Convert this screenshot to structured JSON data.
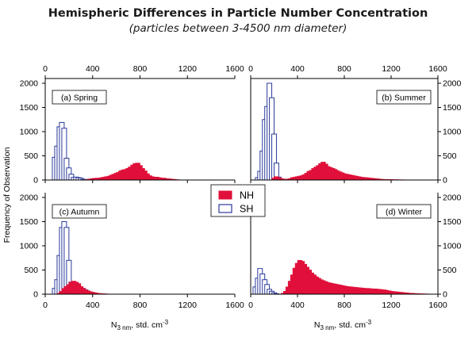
{
  "title": "Hemispheric Differences in Particle Number Concentration",
  "subtitle": "(particles between 3-4500 nm diameter)",
  "colors": {
    "NH": "#e0103a",
    "SH_stroke": "#2b3b9b",
    "axis": "#000000"
  },
  "chart_data": {
    "type": "bar",
    "xlim": [
      0,
      1600
    ],
    "ylim": [
      0,
      2000
    ],
    "bin_width": 40,
    "x_ticks": [
      0,
      400,
      800,
      1200,
      1600
    ],
    "y_ticks": [
      0,
      500,
      1000,
      1500,
      2000
    ],
    "xlabel": {
      "prefix": "N",
      "sub": "3 nm",
      "mid": ", std. cm",
      "sup": "-3"
    },
    "ylabel": "Frequency of Observation",
    "legend": {
      "position": "center",
      "entries": [
        {
          "name": "NH",
          "style": "filled"
        },
        {
          "name": "SH",
          "style": "outline"
        }
      ]
    },
    "panels": [
      {
        "label": "(a) Spring",
        "series": [
          {
            "name": "SH",
            "x": [
              60,
              80,
              100,
              120,
              140,
              160,
              180,
              200,
              220,
              240,
              260,
              280,
              300,
              320,
              340,
              360,
              380,
              400,
              420
            ],
            "values": [
              470,
              700,
              1100,
              1190,
              1070,
              450,
              250,
              120,
              55,
              60,
              50,
              40,
              15,
              10,
              10,
              5,
              5,
              5,
              5
            ]
          },
          {
            "name": "NH",
            "x": [
              320,
              340,
              360,
              380,
              400,
              420,
              440,
              460,
              480,
              500,
              520,
              540,
              560,
              580,
              600,
              620,
              640,
              660,
              680,
              700,
              720,
              740,
              760,
              780,
              800,
              820,
              840,
              860,
              880,
              900,
              920,
              940,
              960,
              980,
              1000,
              1020,
              1040,
              1060,
              1080,
              1100
            ],
            "values": [
              5,
              10,
              20,
              30,
              35,
              40,
              40,
              50,
              60,
              70,
              80,
              100,
              120,
              140,
              160,
              190,
              210,
              220,
              240,
              270,
              310,
              340,
              350,
              300,
              240,
              190,
              130,
              90,
              70,
              60,
              60,
              50,
              40,
              40,
              30,
              25,
              20,
              15,
              10,
              5
            ]
          }
        ]
      },
      {
        "label": "(b) Summer",
        "series": [
          {
            "name": "SH",
            "x": [
              40,
              60,
              80,
              100,
              120,
              140,
              160,
              180,
              200,
              220,
              240
            ],
            "values": [
              50,
              180,
              600,
              1250,
              1520,
              2000,
              1700,
              950,
              350,
              60,
              10
            ]
          },
          {
            "name": "NH",
            "x": [
              180,
              200,
              220,
              240,
              260,
              280,
              300,
              320,
              340,
              360,
              380,
              400,
              420,
              440,
              460,
              480,
              500,
              520,
              540,
              560,
              580,
              600,
              620,
              640,
              660,
              680,
              700,
              720,
              740,
              760,
              780,
              800,
              820,
              840,
              860,
              880,
              900,
              920,
              940,
              960,
              980,
              1000,
              1020,
              1040,
              1060,
              1080,
              1100,
              1140,
              1180,
              1220,
              1260,
              1300,
              1340
            ],
            "values": [
              40,
              70,
              50,
              30,
              20,
              10,
              20,
              30,
              50,
              60,
              70,
              80,
              90,
              110,
              140,
              180,
              200,
              240,
              270,
              300,
              340,
              370,
              330,
              280,
              260,
              240,
              220,
              190,
              170,
              150,
              130,
              120,
              110,
              100,
              90,
              80,
              70,
              60,
              55,
              50,
              45,
              40,
              35,
              30,
              25,
              20,
              15,
              12,
              10,
              8,
              6,
              4,
              2
            ]
          }
        ]
      },
      {
        "label": "(c) Autumn",
        "series": [
          {
            "name": "SH",
            "x": [
              60,
              80,
              100,
              120,
              140,
              160,
              180,
              200,
              220,
              240,
              260,
              280,
              300,
              320,
              340,
              360,
              380
            ],
            "values": [
              120,
              300,
              800,
              1380,
              1500,
              1380,
              700,
              250,
              180,
              150,
              140,
              130,
              120,
              90,
              60,
              40,
              20
            ]
          },
          {
            "name": "NH",
            "x": [
              100,
              120,
              140,
              160,
              180,
              200,
              220,
              240,
              260,
              280,
              300,
              320,
              340,
              360,
              380,
              400,
              420,
              440,
              460,
              480,
              500,
              520
            ],
            "values": [
              20,
              60,
              120,
              160,
              200,
              250,
              270,
              250,
              220,
              160,
              120,
              90,
              70,
              50,
              40,
              30,
              20,
              15,
              10,
              8,
              5,
              3
            ]
          }
        ]
      },
      {
        "label": "(d) Winter",
        "series": [
          {
            "name": "SH",
            "x": [
              20,
              40,
              60,
              80,
              100,
              120,
              140,
              160,
              180,
              200
            ],
            "values": [
              150,
              330,
              530,
              420,
              300,
              200,
              100,
              60,
              30,
              10
            ]
          },
          {
            "name": "NH",
            "x": [
              260,
              280,
              300,
              320,
              340,
              360,
              380,
              400,
              420,
              440,
              460,
              480,
              500,
              520,
              540,
              560,
              580,
              600,
              620,
              640,
              660,
              680,
              700,
              720,
              740,
              760,
              780,
              800,
              820,
              840,
              860,
              880,
              900,
              920,
              940,
              960,
              980,
              1000,
              1020,
              1040,
              1060,
              1080,
              1100,
              1120,
              1140,
              1160,
              1180,
              1200,
              1220,
              1240,
              1260,
              1280,
              1300,
              1320,
              1340,
              1360,
              1380,
              1400,
              1420,
              1440,
              1460,
              1480,
              1500,
              1520,
              1540
            ],
            "values": [
              20,
              60,
              150,
              270,
              400,
              540,
              640,
              700,
              680,
              620,
              560,
              500,
              440,
              400,
              360,
              330,
              300,
              280,
              260,
              240,
              230,
              220,
              210,
              200,
              190,
              180,
              170,
              160,
              155,
              150,
              145,
              140,
              135,
              130,
              125,
              120,
              120,
              115,
              110,
              110,
              105,
              100,
              95,
              90,
              80,
              70,
              60,
              55,
              50,
              45,
              40,
              35,
              30,
              25,
              20,
              18,
              15,
              12,
              10,
              8,
              6,
              5,
              4,
              3,
              2
            ]
          }
        ]
      }
    ]
  }
}
